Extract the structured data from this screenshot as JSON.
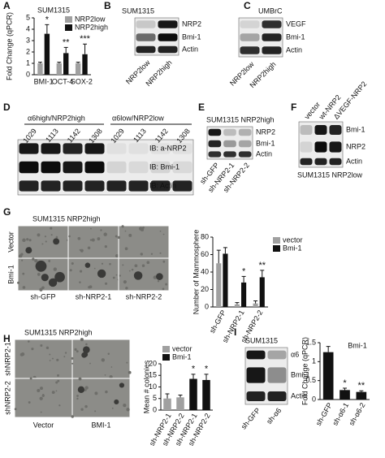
{
  "figure": {
    "A": {
      "letter": "A"
    },
    "B": {
      "letter": "B",
      "title": "SUM1315",
      "bands": [
        "NRP2",
        "Bmi-1",
        "Actin"
      ],
      "lanes": [
        "NRP2low",
        "NRP2high"
      ]
    },
    "C": {
      "letter": "C",
      "title": "UMBrC",
      "bands": [
        "VEGF",
        "Bmi-1",
        "Actin"
      ],
      "lanes": [
        "NRP2low",
        "NRP2high"
      ]
    },
    "D": {
      "letter": "D",
      "groups": [
        "α6high/NRP2high",
        "α6low/NRP2low"
      ],
      "lanes": [
        "1029",
        "1113",
        "1142",
        "1308",
        "1029",
        "1113",
        "1142",
        "1308"
      ],
      "bands": [
        "IB: a-NRP2",
        "IB: Bmi-1",
        "IB: Actin"
      ]
    },
    "E": {
      "letter": "E",
      "title": "SUM1315 NRP2high",
      "bands": [
        "NRP2",
        "Bmi-1",
        "Actin"
      ],
      "lanes": [
        "sh-GFP",
        "sh-NRP2-1",
        "sh-NRP2-2"
      ]
    },
    "F": {
      "letter": "F",
      "caption": "SUM1315 NRP2low",
      "bands": [
        "Bmi-1",
        "NRP2",
        "Actin"
      ],
      "lanes": [
        "vector",
        "wt-NRP2",
        "ΔVEGF-NRP2"
      ]
    },
    "G": {
      "letter": "G",
      "title": "SUM1315 NRP2high",
      "rows": [
        "Vector",
        "Bmi-1"
      ],
      "columns": [
        "sh-GFP",
        "sh-NRP2-1",
        "sh-NRP2-2"
      ]
    },
    "H": {
      "letter": "H",
      "title": "SUM1315 NRP2high",
      "rows": [
        "shNRP2-1",
        "shNRP2-2"
      ],
      "columns": [
        "Vector",
        "BMI-1"
      ]
    },
    "I": {
      "letter": "I",
      "title": "SUM1315",
      "bands": [
        "α6",
        "Bmi-1",
        "Actin"
      ],
      "lanes": [
        "sh-GFP",
        "sh-α6"
      ]
    }
  },
  "chart_data": [
    {
      "type": "bar",
      "title": "SUM1315",
      "y_label": "Fold Change (qPCR)",
      "categories": [
        "BMI-1",
        "OCT-4",
        "SOX-2"
      ],
      "series": [
        {
          "name": "NRP2low",
          "color": "#a0a0a0",
          "values": [
            1,
            1,
            1
          ],
          "errors": [
            0.1,
            0.1,
            0.1
          ]
        },
        {
          "name": "NRP2high",
          "color": "#111111",
          "values": [
            3.6,
            1.9,
            1.8
          ],
          "errors": [
            0.8,
            0.5,
            0.9
          ]
        }
      ],
      "annotations": [
        "*",
        "**",
        "***"
      ],
      "ylim": [
        0,
        5
      ],
      "yticks": [
        0,
        1,
        2,
        3,
        4,
        5
      ]
    },
    {
      "type": "bar",
      "y_label": "Number of Mammosphere",
      "categories": [
        "sh-GFP",
        "sh-NRP2-1",
        "sh-NRP2-2"
      ],
      "series": [
        {
          "name": "vector",
          "color": "#a0a0a0",
          "values": [
            50,
            3,
            4
          ],
          "errors": [
            15,
            2,
            3
          ]
        },
        {
          "name": "Bmi-1",
          "color": "#111111",
          "values": [
            61,
            28,
            34
          ],
          "errors": [
            7,
            7,
            8
          ]
        }
      ],
      "annotations": [
        null,
        "*",
        "**"
      ],
      "ylim": [
        0,
        80
      ],
      "yticks": [
        0,
        20,
        40,
        60,
        80
      ]
    },
    {
      "type": "bar",
      "y_label": "Mean # colonies",
      "categories": [
        "sh-NRP2-1",
        "sh-NRP2-2",
        "sh-NRP2-1",
        "sh-NRP2-2"
      ],
      "series": [
        {
          "name": "vector",
          "color": "#a0a0a0",
          "values": [
            5,
            5.5,
            null,
            null
          ],
          "errors": [
            2,
            1,
            null,
            null
          ]
        },
        {
          "name": "Bmi-1",
          "color": "#111111",
          "values": [
            null,
            null,
            13.5,
            13
          ],
          "errors": [
            null,
            null,
            2,
            2.5
          ]
        }
      ],
      "annotations": [
        null,
        null,
        "*",
        "*"
      ],
      "ylim": [
        0,
        20
      ],
      "yticks": [
        0,
        5,
        10,
        15,
        20
      ]
    },
    {
      "type": "bar",
      "title": "Bmi-1",
      "y_label": "Fold Change (qPCR)",
      "categories": [
        "sh-GFP",
        "sh-α6-1",
        "sh-α6-2"
      ],
      "series": [
        {
          "name": "Bmi-1",
          "color": "#111111",
          "values": [
            1.25,
            0.25,
            0.2
          ],
          "errors": [
            0.15,
            0.05,
            0.03
          ]
        }
      ],
      "annotations": [
        null,
        "*",
        "**"
      ],
      "ylim": [
        0,
        1.5
      ],
      "yticks": [
        0,
        0.5,
        1,
        1.5
      ]
    }
  ]
}
